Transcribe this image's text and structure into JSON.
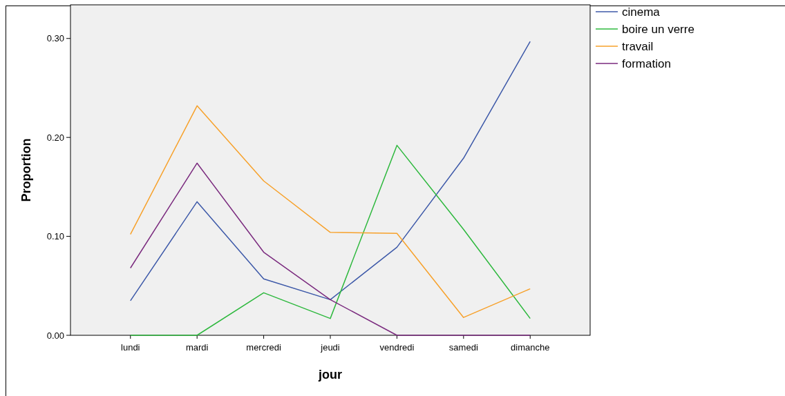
{
  "chart_data": {
    "type": "line",
    "xlabel": "jour",
    "ylabel": "Proportion",
    "categories": [
      "lundi",
      "mardi",
      "mercredi",
      "jeudi",
      "vendredi",
      "samedi",
      "dimanche"
    ],
    "series": [
      {
        "name": "cinema",
        "color": "#3c58a8",
        "values": [
          0.035,
          0.135,
          0.057,
          0.036,
          0.089,
          0.179,
          0.297
        ]
      },
      {
        "name": "boire un verre",
        "color": "#2db83d",
        "values": [
          0,
          0,
          0.043,
          0.017,
          0.192,
          0.107,
          0.017
        ]
      },
      {
        "name": "travail",
        "color": "#f7a12a",
        "values": [
          0.102,
          0.232,
          0.156,
          0.104,
          0.103,
          0.018,
          0.047
        ]
      },
      {
        "name": "formation",
        "color": "#7a2a7e",
        "values": [
          0.068,
          0.174,
          0.084,
          0.036,
          0,
          0,
          0
        ]
      }
    ],
    "ylim": [
      0,
      0.334
    ],
    "yticks": [
      {
        "value": 0,
        "label": "0.00"
      },
      {
        "value": 0.1,
        "label": "0.10"
      },
      {
        "value": 0.2,
        "label": "0.20"
      },
      {
        "value": 0.3,
        "label": "0.30"
      }
    ],
    "grid": false,
    "legend": "top right",
    "marker": "none",
    "line_style": "solid"
  }
}
